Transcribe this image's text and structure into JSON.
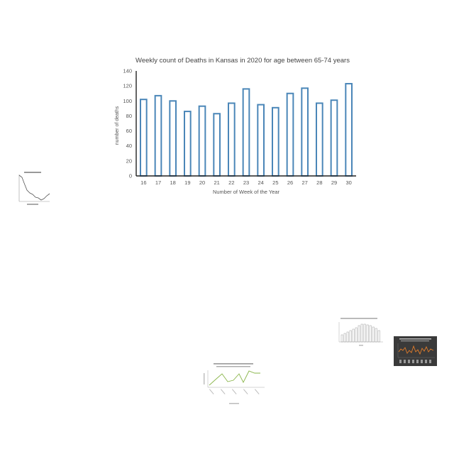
{
  "chart_data": {
    "type": "bar",
    "title": "Weekly count of Deaths in Kansas in 2020 for age between 65-74 years",
    "xlabel": "Number of Week of the Year",
    "ylabel": "number of deaths",
    "categories": [
      "16",
      "17",
      "18",
      "19",
      "20",
      "21",
      "22",
      "23",
      "24",
      "25",
      "26",
      "27",
      "28",
      "29",
      "30"
    ],
    "values": [
      102,
      107,
      100,
      86,
      93,
      83,
      97,
      116,
      95,
      91,
      110,
      117,
      97,
      101,
      123
    ],
    "ylim": [
      0,
      140
    ],
    "yticks": [
      0,
      20,
      40,
      60,
      80,
      100,
      120,
      140
    ],
    "grid": false,
    "legend": "none",
    "colors": {
      "bar_stroke": "#4a86b8",
      "bar_fill": "#ffffff",
      "axis": "#222222",
      "text": "#555555"
    }
  },
  "thumbnails": [
    {
      "id": "thumb-decline-line",
      "kind": "line",
      "theme": "light",
      "line_color": "#555555"
    },
    {
      "id": "thumb-bar-histogram",
      "kind": "bar",
      "theme": "light",
      "bar_color": "#bbbbbb"
    },
    {
      "id": "thumb-dark-line",
      "kind": "line",
      "theme": "dark",
      "line_color": "#e07b2a"
    },
    {
      "id": "thumb-green-line",
      "kind": "line",
      "theme": "light",
      "line_color": "#8ab54a"
    }
  ]
}
